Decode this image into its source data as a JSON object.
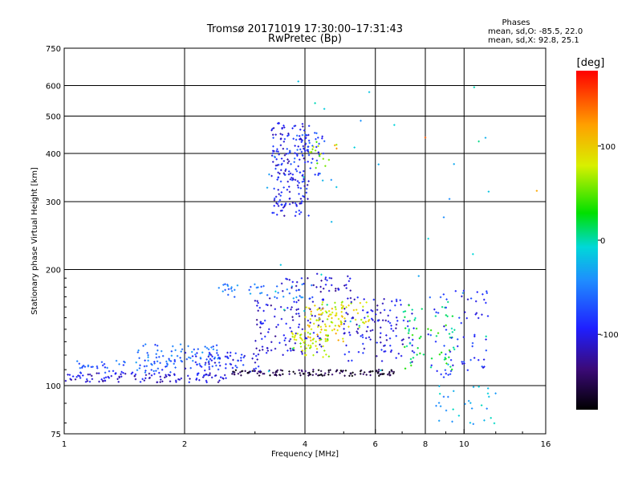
{
  "chart_data": {
    "type": "scatter",
    "title": "Tromsø 20171019 17:30:00–17:31:43",
    "subtitle": "RwPretec (Bp)",
    "xlabel": "Frequency [MHz]",
    "ylabel": "Stationary phase Virtual Height [km]",
    "x_scale": "log",
    "y_scale": "log",
    "xlim": [
      1,
      16
    ],
    "ylim": [
      75,
      750
    ],
    "x_ticks": [
      {
        "value": 1,
        "label": "1"
      },
      {
        "value": 2,
        "label": "2"
      },
      {
        "value": 4,
        "label": "4"
      },
      {
        "value": 6,
        "label": "6"
      },
      {
        "value": 8,
        "label": "8"
      },
      {
        "value": 10,
        "label": "10"
      },
      {
        "value": 16,
        "label": "16"
      }
    ],
    "y_ticks": [
      {
        "value": 75,
        "label": "75"
      },
      {
        "value": 100,
        "label": "100"
      },
      {
        "value": 200,
        "label": "200"
      },
      {
        "value": 300,
        "label": "300"
      },
      {
        "value": 400,
        "label": "400"
      },
      {
        "value": 500,
        "label": "500"
      },
      {
        "value": 600,
        "label": "600"
      },
      {
        "value": 750,
        "label": "750"
      }
    ],
    "grid": true,
    "phases_box": {
      "heading": "Phases",
      "line_o": "mean, sd,O: -85.5, 22.0",
      "line_x": "mean, sd,X:  92.8, 25.1"
    },
    "colorbar": {
      "label": "[deg]",
      "range": [
        -180,
        180
      ],
      "ticks": [
        {
          "value": 100,
          "label": "100"
        },
        {
          "value": 0,
          "label": "0"
        },
        {
          "value": -100,
          "label": "-100"
        }
      ]
    },
    "clusters": [
      {
        "x": [
          1.0,
          2.6
        ],
        "y": [
          102,
          108
        ],
        "phase": -110,
        "n": 110
      },
      {
        "x": [
          1.05,
          1.9
        ],
        "y": [
          108,
          116
        ],
        "phase": -70,
        "n": 50
      },
      {
        "x": [
          1.5,
          2.5
        ],
        "y": [
          112,
          128
        ],
        "phase": -60,
        "n": 70
      },
      {
        "x": [
          2.0,
          3.2
        ],
        "y": [
          108,
          122
        ],
        "phase": -95,
        "n": 70
      },
      {
        "x": [
          2.6,
          6.8
        ],
        "y": [
          106,
          110
        ],
        "phase": -160,
        "n": 130
      },
      {
        "x": [
          3.0,
          4.5
        ],
        "y": [
          120,
          170
        ],
        "phase": -110,
        "n": 110
      },
      {
        "x": [
          3.3,
          4.1
        ],
        "y": [
          275,
          480
        ],
        "phase": -100,
        "n": 180
      },
      {
        "x": [
          3.6,
          4.5
        ],
        "y": [
          350,
          460
        ],
        "phase": -80,
        "n": 50
      },
      {
        "x": [
          4.1,
          4.8
        ],
        "y": [
          360,
          430
        ],
        "phase": 60,
        "n": 15
      },
      {
        "x": [
          2.4,
          4.2
        ],
        "y": [
          168,
          185
        ],
        "phase": -55,
        "n": 45
      },
      {
        "x": [
          3.5,
          5.2
        ],
        "y": [
          175,
          195
        ],
        "phase": -110,
        "n": 40
      },
      {
        "x": [
          4.0,
          5.0
        ],
        "y": [
          130,
          160
        ],
        "phase": 100,
        "n": 60
      },
      {
        "x": [
          4.2,
          5.8
        ],
        "y": [
          140,
          165
        ],
        "phase": 80,
        "n": 50
      },
      {
        "x": [
          3.7,
          4.6
        ],
        "y": [
          118,
          138
        ],
        "phase": 70,
        "n": 50
      },
      {
        "x": [
          5.0,
          7.5
        ],
        "y": [
          115,
          170
        ],
        "phase": -105,
        "n": 120
      },
      {
        "x": [
          7.0,
          9.5
        ],
        "y": [
          110,
          165
        ],
        "phase": 20,
        "n": 60
      },
      {
        "x": [
          8.0,
          11.5
        ],
        "y": [
          105,
          180
        ],
        "phase": -90,
        "n": 70
      },
      {
        "x": [
          8.5,
          12.0
        ],
        "y": [
          78,
          100
        ],
        "phase": -30,
        "n": 30
      },
      {
        "x": [
          3.0,
          12.0
        ],
        "y": [
          100,
          600
        ],
        "phase": -20,
        "n": 40
      }
    ],
    "points": [
      {
        "x": 3.85,
        "y": 615,
        "phase": -20
      },
      {
        "x": 8.0,
        "y": 440,
        "phase": 150
      },
      {
        "x": 15.2,
        "y": 320,
        "phase": 120
      },
      {
        "x": 4.75,
        "y": 420,
        "phase": 120
      },
      {
        "x": 4.8,
        "y": 412,
        "phase": 130
      }
    ]
  }
}
